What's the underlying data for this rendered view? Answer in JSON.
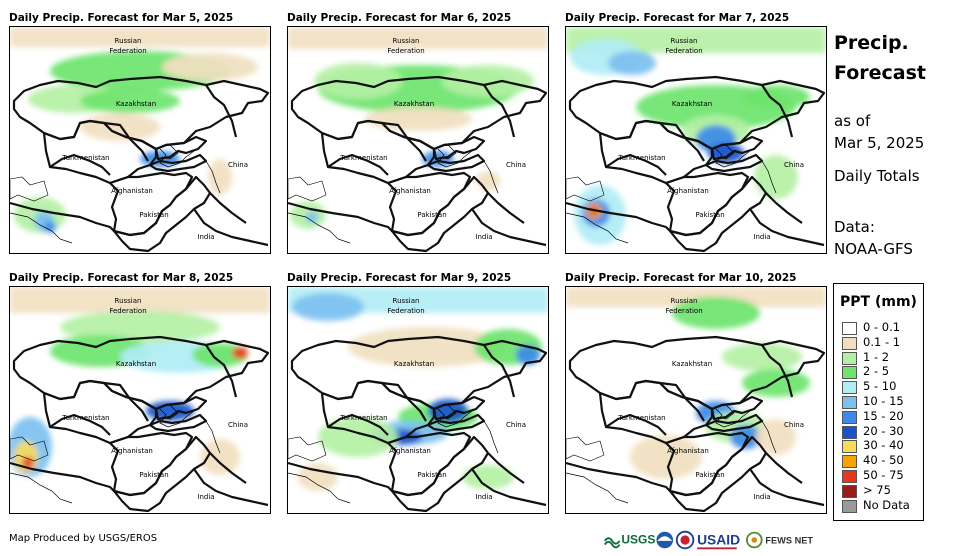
{
  "panels": [
    {
      "title": "Daily Precip. Forecast for Mar 5, 2025"
    },
    {
      "title": "Daily Precip. Forecast for Mar 6, 2025"
    },
    {
      "title": "Daily Precip. Forecast for Mar 7, 2025"
    },
    {
      "title": "Daily Precip. Forecast for Mar 8, 2025"
    },
    {
      "title": "Daily Precip. Forecast for Mar 9, 2025"
    },
    {
      "title": "Daily Precip. Forecast for Mar 10, 2025"
    }
  ],
  "map_labels": {
    "russia_line1": "Russian",
    "russia_line2": "Federation",
    "kazakhstan": "Kazakhstan",
    "turkmenistan": "Turkmenistan",
    "china": "China",
    "afghanistan": "Afghanistan",
    "pakistan": "Pakistan",
    "india": "India"
  },
  "side_info": {
    "title_line1": "Precip.",
    "title_line2": "Forecast",
    "asof_line1": "as of",
    "asof_line2": "Mar 5, 2025",
    "totals": "Daily Totals",
    "data_line1": "Data:",
    "data_line2": "NOAA-GFS"
  },
  "legend": {
    "title": "PPT (mm)",
    "items": [
      {
        "label": "0 - 0.1",
        "color": "#ffffff"
      },
      {
        "label": "0.1 - 1",
        "color": "#f1dfc0"
      },
      {
        "label": "1 - 2",
        "color": "#b4f0a4"
      },
      {
        "label": "2 - 5",
        "color": "#6ee46c"
      },
      {
        "label": "5 - 10",
        "color": "#b0edf5"
      },
      {
        "label": "10 - 15",
        "color": "#7cc0f0"
      },
      {
        "label": "15 - 20",
        "color": "#3d8ae8"
      },
      {
        "label": "20 - 30",
        "color": "#1a52c9"
      },
      {
        "label": "30 - 40",
        "color": "#f7dc5a"
      },
      {
        "label": "40 - 50",
        "color": "#f5a400"
      },
      {
        "label": "50 - 75",
        "color": "#e8361c"
      },
      {
        "label": "> 75",
        "color": "#9c1a1a"
      },
      {
        "label": "No Data",
        "color": "#9a9a9a"
      }
    ]
  },
  "credit": "Map Produced by USGS/EROS",
  "logos": {
    "usgs": "USGS",
    "usaid": "USAID",
    "fewsnet": "FEWS NET"
  }
}
